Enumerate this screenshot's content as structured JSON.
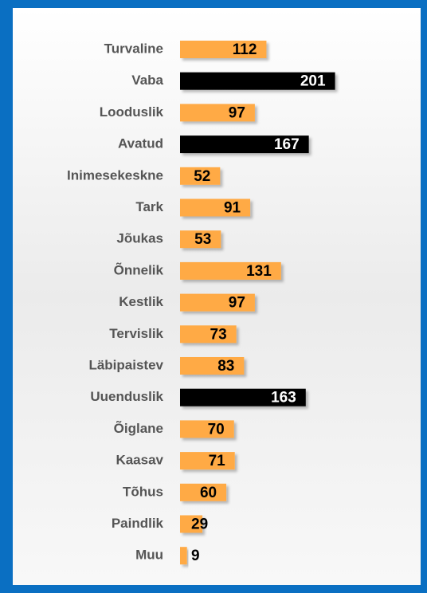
{
  "chart_data": {
    "type": "barh",
    "categories": [
      "Turvaline",
      "Vaba",
      "Looduslik",
      "Avatud",
      "Inimesekeskne",
      "Tark",
      "Jõukas",
      "Õnnelik",
      "Kestlik",
      "Tervislik",
      "Läbipaistev",
      "Uuenduslik",
      "Õiglane",
      "Kaasav",
      "Tõhus",
      "Paindlik",
      "Muu"
    ],
    "values": [
      112,
      201,
      97,
      167,
      52,
      91,
      53,
      131,
      97,
      73,
      83,
      163,
      70,
      71,
      60,
      29,
      9
    ],
    "colors": [
      "#ffaa44",
      "#000000",
      "#ffaa44",
      "#000000",
      "#ffaa44",
      "#ffaa44",
      "#ffaa44",
      "#ffaa44",
      "#ffaa44",
      "#ffaa44",
      "#ffaa44",
      "#000000",
      "#ffaa44",
      "#ffaa44",
      "#ffaa44",
      "#ffaa44",
      "#ffaa44"
    ],
    "xlim": [
      0,
      250
    ]
  }
}
